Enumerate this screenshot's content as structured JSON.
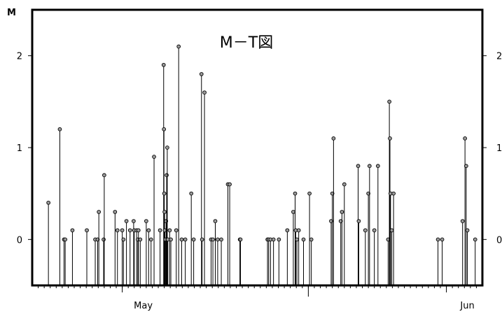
{
  "chart_data": {
    "type": "stem",
    "title": "M－T図",
    "ylabel": "M",
    "xlabel": "",
    "ylim": [
      -0.5,
      2.5
    ],
    "yticks": [
      0,
      1,
      2
    ],
    "xlim": [
      0,
      75
    ],
    "x_units": "days from the left edge of the axis (left edge ≈ 16 April)",
    "month_labels": [
      {
        "label": "May",
        "day": 15
      },
      {
        "label": "Jun",
        "day": 69
      }
    ],
    "mid_marker_day": 46,
    "grid": false,
    "legend": "none",
    "points": [
      {
        "x": 2.7,
        "y": 0.4
      },
      {
        "x": 4.6,
        "y": 1.2
      },
      {
        "x": 5.3,
        "y": 0.0
      },
      {
        "x": 5.5,
        "y": 0.0
      },
      {
        "x": 6.7,
        "y": 0.1
      },
      {
        "x": 9.1,
        "y": 0.1
      },
      {
        "x": 10.5,
        "y": 0.0
      },
      {
        "x": 10.9,
        "y": 0.0
      },
      {
        "x": 11.1,
        "y": 0.3
      },
      {
        "x": 11.9,
        "y": 0.0
      },
      {
        "x": 12.0,
        "y": 0.7
      },
      {
        "x": 13.8,
        "y": 0.3
      },
      {
        "x": 14.2,
        "y": 0.1
      },
      {
        "x": 15.0,
        "y": 0.1
      },
      {
        "x": 15.2,
        "y": 0.0
      },
      {
        "x": 15.7,
        "y": 0.2
      },
      {
        "x": 16.3,
        "y": 0.1
      },
      {
        "x": 16.9,
        "y": 0.2
      },
      {
        "x": 17.0,
        "y": 0.1
      },
      {
        "x": 17.4,
        "y": 0.1
      },
      {
        "x": 17.6,
        "y": 0.0
      },
      {
        "x": 17.7,
        "y": 0.1
      },
      {
        "x": 18.0,
        "y": 0.0
      },
      {
        "x": 19.0,
        "y": 0.2
      },
      {
        "x": 19.4,
        "y": 0.1
      },
      {
        "x": 19.8,
        "y": 0.0
      },
      {
        "x": 20.3,
        "y": 0.9
      },
      {
        "x": 21.3,
        "y": 0.1
      },
      {
        "x": 21.9,
        "y": 1.9
      },
      {
        "x": 21.95,
        "y": 1.2
      },
      {
        "x": 22.0,
        "y": 0.5
      },
      {
        "x": 22.05,
        "y": 0.3
      },
      {
        "x": 22.1,
        "y": 0.1
      },
      {
        "x": 22.2,
        "y": 0.0
      },
      {
        "x": 22.3,
        "y": 0.2
      },
      {
        "x": 22.4,
        "y": 0.7
      },
      {
        "x": 22.5,
        "y": 1.0
      },
      {
        "x": 22.6,
        "y": 0.0
      },
      {
        "x": 22.9,
        "y": 0.1
      },
      {
        "x": 23.1,
        "y": 0.0
      },
      {
        "x": 24.0,
        "y": 0.1
      },
      {
        "x": 24.4,
        "y": 2.1
      },
      {
        "x": 24.9,
        "y": 0.0
      },
      {
        "x": 25.5,
        "y": 0.0
      },
      {
        "x": 26.5,
        "y": 0.5
      },
      {
        "x": 26.9,
        "y": 0.0
      },
      {
        "x": 28.2,
        "y": 1.8
      },
      {
        "x": 28.3,
        "y": 0.0
      },
      {
        "x": 28.7,
        "y": 1.6
      },
      {
        "x": 29.8,
        "y": 0.0
      },
      {
        "x": 30.1,
        "y": 0.0
      },
      {
        "x": 30.5,
        "y": 0.2
      },
      {
        "x": 30.9,
        "y": 0.0
      },
      {
        "x": 31.5,
        "y": 0.0
      },
      {
        "x": 32.6,
        "y": 0.6
      },
      {
        "x": 32.9,
        "y": 0.6
      },
      {
        "x": 34.6,
        "y": 0.0
      },
      {
        "x": 34.7,
        "y": 0.0
      },
      {
        "x": 39.2,
        "y": 0.0
      },
      {
        "x": 39.4,
        "y": 0.0
      },
      {
        "x": 39.7,
        "y": 0.0
      },
      {
        "x": 40.2,
        "y": 0.0
      },
      {
        "x": 41.1,
        "y": 0.0
      },
      {
        "x": 42.5,
        "y": 0.1
      },
      {
        "x": 43.5,
        "y": 0.3
      },
      {
        "x": 43.8,
        "y": 0.5
      },
      {
        "x": 43.9,
        "y": 0.1
      },
      {
        "x": 44.1,
        "y": 0.0
      },
      {
        "x": 44.4,
        "y": 0.1
      },
      {
        "x": 45.2,
        "y": 0.0
      },
      {
        "x": 46.2,
        "y": 0.5
      },
      {
        "x": 46.5,
        "y": 0.0
      },
      {
        "x": 49.8,
        "y": 0.2
      },
      {
        "x": 50.0,
        "y": 0.5
      },
      {
        "x": 50.2,
        "y": 1.1
      },
      {
        "x": 51.4,
        "y": 0.2
      },
      {
        "x": 51.6,
        "y": 0.3
      },
      {
        "x": 52.0,
        "y": 0.6
      },
      {
        "x": 54.3,
        "y": 0.8
      },
      {
        "x": 54.4,
        "y": 0.2
      },
      {
        "x": 55.5,
        "y": 0.1
      },
      {
        "x": 56.0,
        "y": 0.5
      },
      {
        "x": 56.2,
        "y": 0.8
      },
      {
        "x": 57.0,
        "y": 0.1
      },
      {
        "x": 57.6,
        "y": 0.8
      },
      {
        "x": 59.3,
        "y": 0.0
      },
      {
        "x": 59.5,
        "y": 1.5
      },
      {
        "x": 59.6,
        "y": 1.1
      },
      {
        "x": 59.7,
        "y": 0.5
      },
      {
        "x": 59.9,
        "y": 0.1
      },
      {
        "x": 60.2,
        "y": 0.5
      },
      {
        "x": 67.6,
        "y": 0.0
      },
      {
        "x": 68.3,
        "y": 0.0
      },
      {
        "x": 71.7,
        "y": 0.2
      },
      {
        "x": 72.1,
        "y": 1.1
      },
      {
        "x": 72.3,
        "y": 0.8
      },
      {
        "x": 72.5,
        "y": 0.1
      },
      {
        "x": 73.8,
        "y": 0.0
      }
    ]
  }
}
